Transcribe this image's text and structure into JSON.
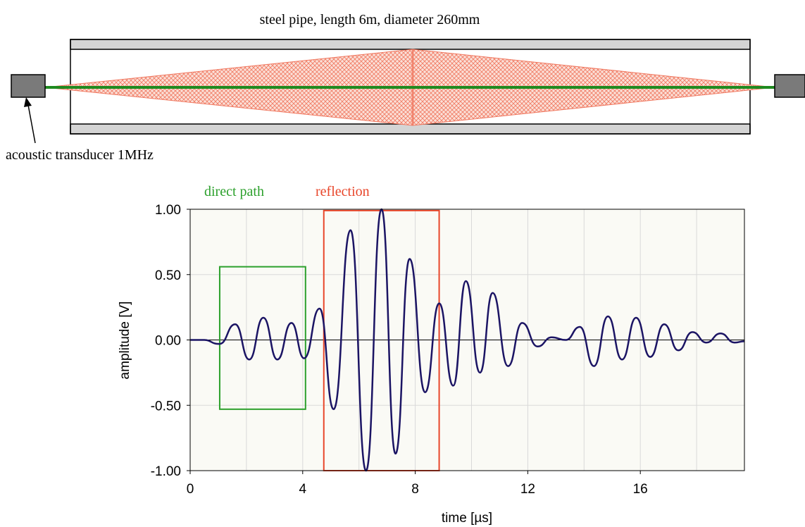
{
  "diagram": {
    "pipe_title": "steel pipe, length 6m, diameter 260mm",
    "transducer_label": "acoustic transducer 1MHz",
    "colors": {
      "pipe_wall": "#d4d4d4",
      "beam": "#f0735a",
      "direct_path": "#1f8a1f",
      "transducer": "#7a7a7a"
    }
  },
  "chart_data": {
    "type": "line",
    "xlabel": "time [µs]",
    "ylabel": "amplitude  [V]",
    "xlim": [
      0,
      19.7
    ],
    "ylim": [
      -1.0,
      1.0
    ],
    "xticks": [
      0,
      4,
      8,
      12,
      16
    ],
    "xtick_labels": [
      "0",
      "4",
      "8",
      "12",
      "16"
    ],
    "yticks": [
      1.0,
      0.5,
      0.0,
      -0.5,
      -1.0
    ],
    "ytick_labels": [
      "1.00",
      "0.50",
      "0.00",
      "-0.50",
      "-1.00"
    ],
    "grid": true,
    "background": "#fafaf5",
    "series": [
      {
        "color": "#1b1464",
        "x": [
          0,
          0.5,
          1.0,
          1.05,
          1.6,
          2.1,
          2.6,
          3.1,
          3.6,
          4.05,
          4.6,
          5.1,
          5.7,
          6.25,
          6.8,
          7.3,
          7.8,
          8.35,
          8.85,
          9.35,
          9.8,
          10.3,
          10.75,
          11.3,
          11.8,
          12.35,
          12.85,
          13.35,
          13.85,
          14.35,
          14.85,
          15.35,
          15.85,
          16.35,
          16.85,
          17.35,
          17.85,
          18.35,
          18.85,
          19.35,
          19.7
        ],
        "y": [
          0.0,
          0.0,
          -0.03,
          -0.03,
          0.12,
          -0.15,
          0.17,
          -0.15,
          0.13,
          -0.14,
          0.24,
          -0.53,
          0.84,
          -1.0,
          1.0,
          -0.87,
          0.62,
          -0.4,
          0.28,
          -0.35,
          0.45,
          -0.25,
          0.36,
          -0.2,
          0.13,
          -0.05,
          0.02,
          0.0,
          0.1,
          -0.2,
          0.18,
          -0.15,
          0.17,
          -0.13,
          0.12,
          -0.08,
          0.06,
          -0.02,
          0.05,
          -0.02,
          -0.01
        ]
      }
    ],
    "annotations": [
      {
        "label": "direct path",
        "color": "#2ca02c",
        "x": [
          1.05,
          4.1
        ],
        "y": [
          -0.53,
          0.56
        ]
      },
      {
        "label": "reflection",
        "color": "#e8462a",
        "x": [
          4.75,
          8.85
        ],
        "y": [
          -1.0,
          0.99
        ]
      }
    ]
  }
}
